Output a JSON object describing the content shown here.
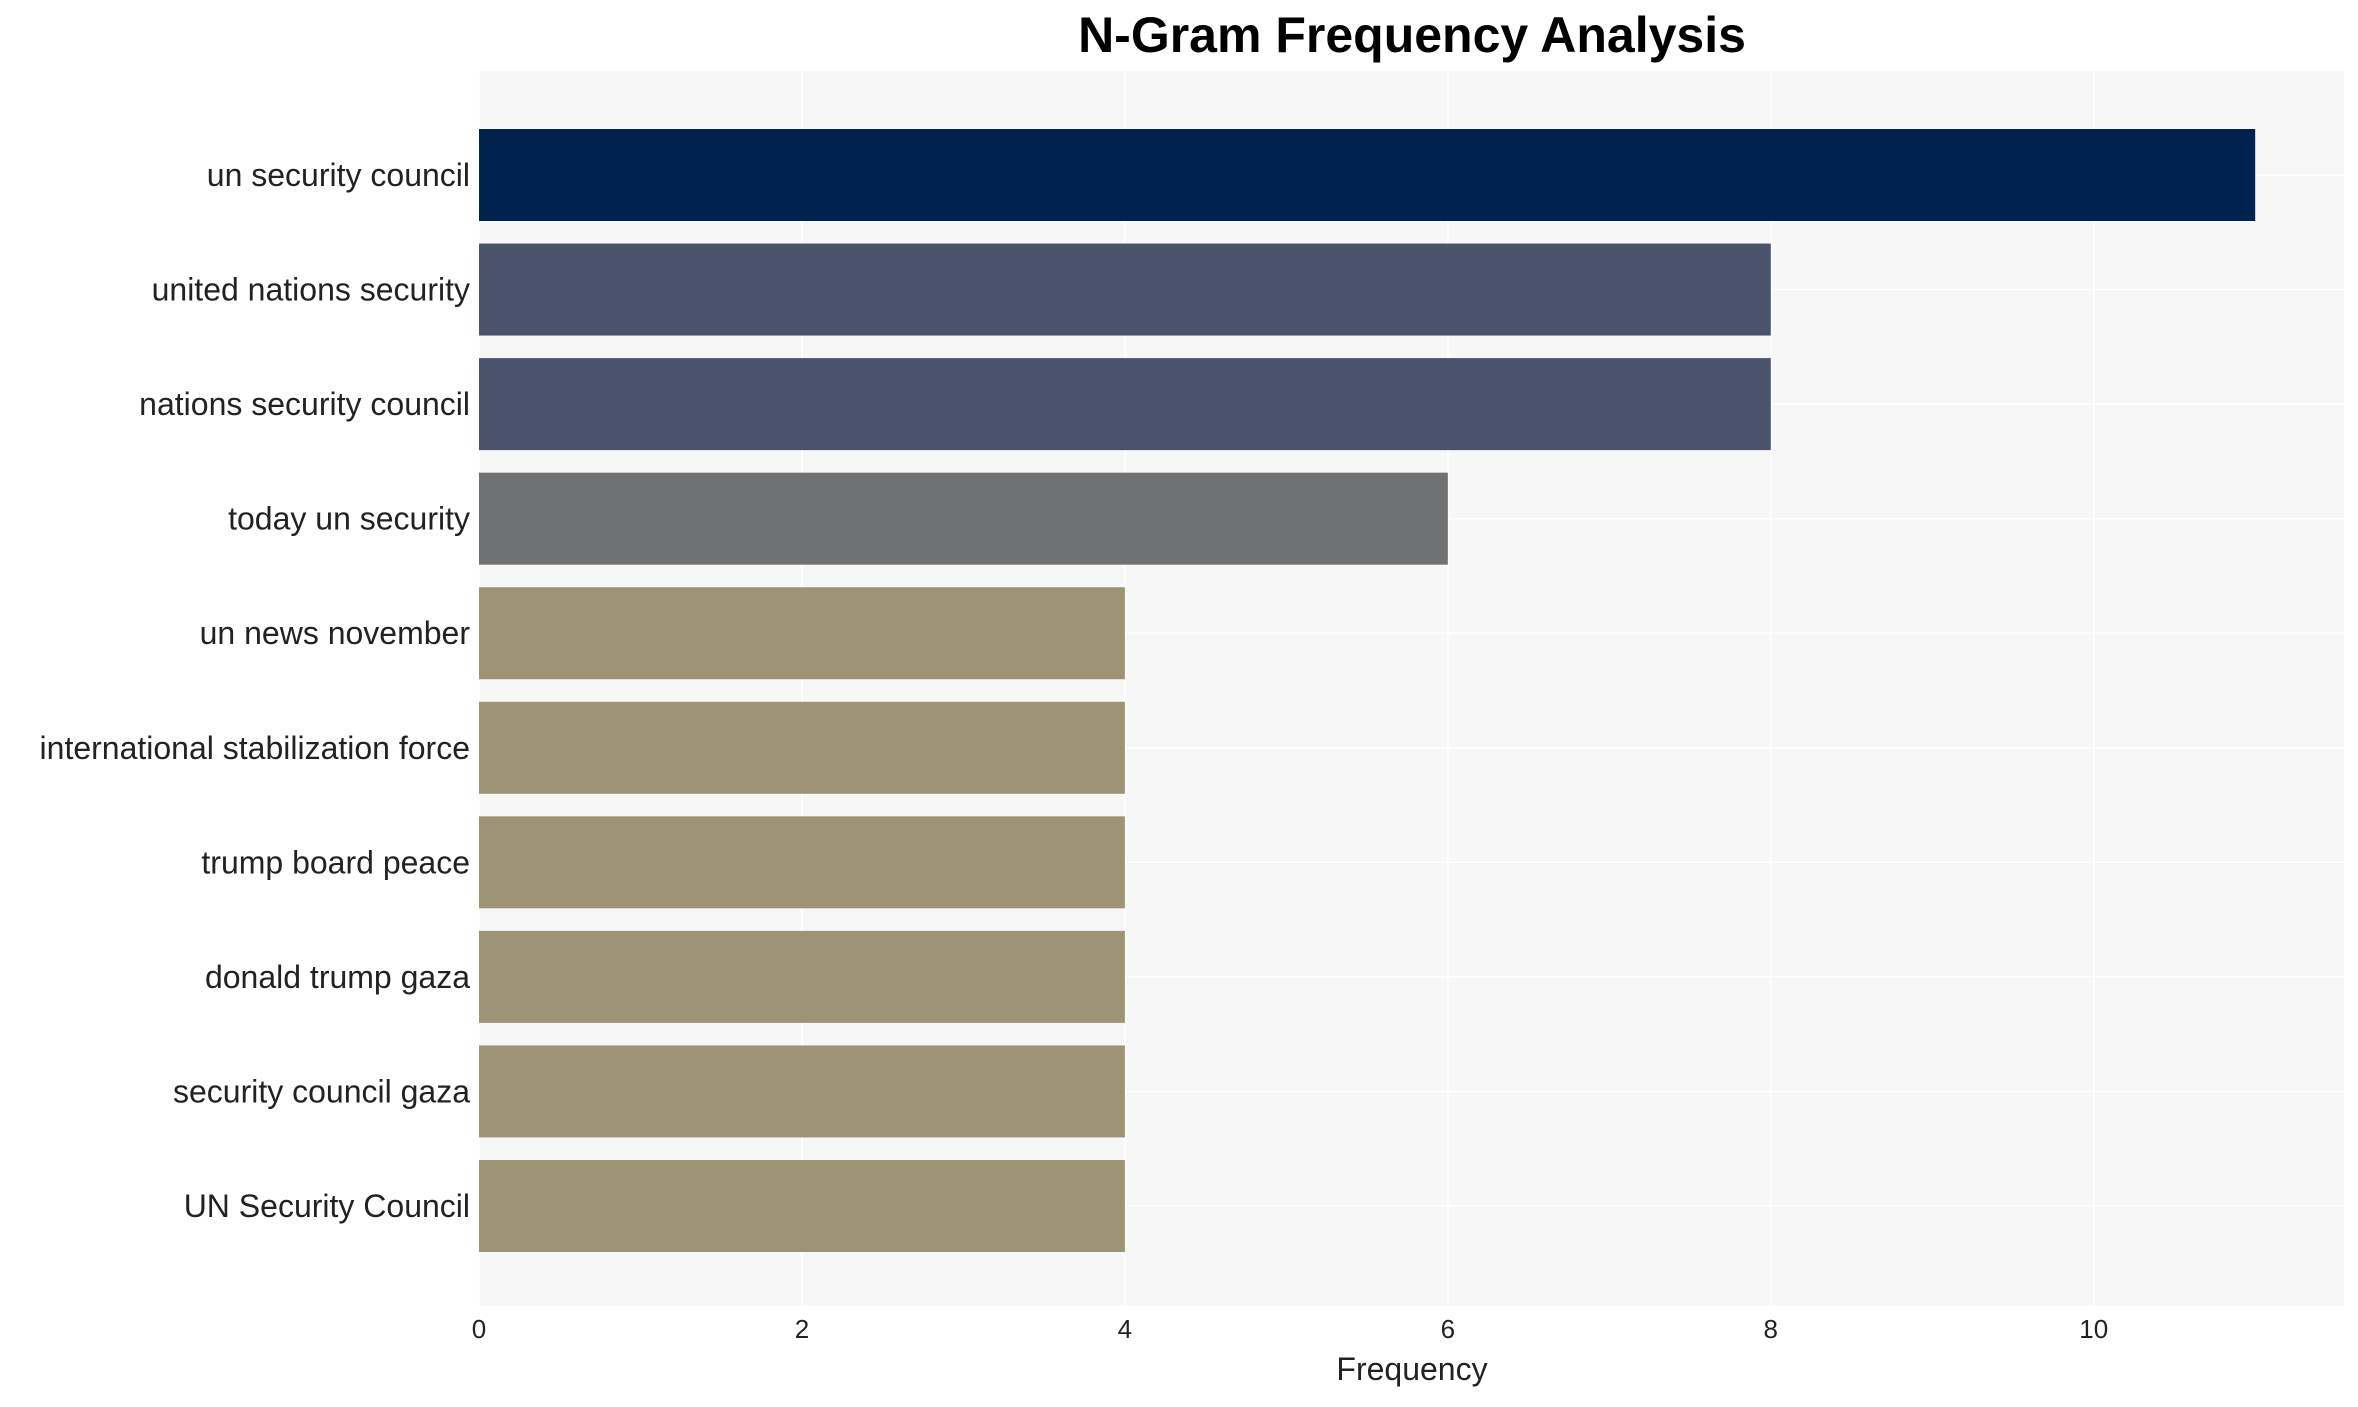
{
  "chart_data": {
    "type": "bar",
    "orientation": "horizontal",
    "title": "N-Gram Frequency Analysis",
    "xlabel": "Frequency",
    "ylabel": "",
    "xlim": [
      0,
      11.55
    ],
    "xticks": [
      0,
      2,
      4,
      6,
      8,
      10
    ],
    "grid": true,
    "legend": "none",
    "categories": [
      "un security council",
      "united nations security",
      "nations security council",
      "today un security",
      "un news november",
      "international stabilization force",
      "trump board peace",
      "donald trump gaza",
      "security council gaza",
      "UN Security Council"
    ],
    "values": [
      11,
      8,
      8,
      6,
      4,
      4,
      4,
      4,
      4,
      4
    ],
    "colors": [
      "#00224e",
      "#4a536b",
      "#4a536b",
      "#707173",
      "#9d9475",
      "#9d9475",
      "#9d9475",
      "#9d9475",
      "#9d9475",
      "#9d9475"
    ],
    "plot_background": "#f7f7f8",
    "grid_color": "#ffffff"
  }
}
